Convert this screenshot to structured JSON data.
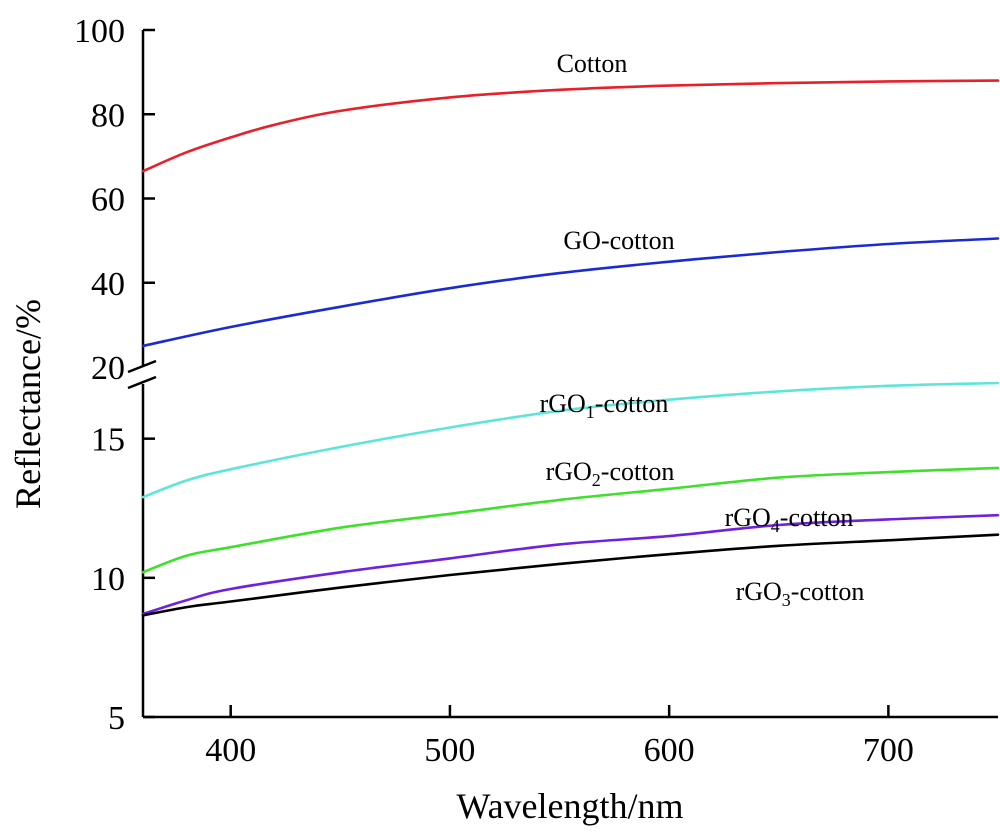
{
  "chart_data": {
    "type": "line",
    "xlabel": "Wavelength/nm",
    "ylabel": "Reflectance/%",
    "xlim": [
      360,
      750
    ],
    "x_ticks": [
      "400",
      "500",
      "600",
      "700"
    ],
    "y_axis_break": true,
    "y_upper": {
      "ylim": [
        20,
        100
      ],
      "ticks": [
        "20",
        "40",
        "60",
        "80",
        "100"
      ]
    },
    "y_lower": {
      "ylim": [
        5,
        17
      ],
      "ticks": [
        "5",
        "10",
        "15"
      ]
    },
    "grid": false,
    "series": [
      {
        "name": "Cotton",
        "label": {
          "main": "Cotton",
          "sub": "",
          "rest": ""
        },
        "color": "#e8202a",
        "panel": "upper",
        "x": [
          360,
          380,
          400,
          420,
          450,
          500,
          550,
          600,
          650,
          700,
          750
        ],
        "y": [
          66.5,
          71,
          74.5,
          77.5,
          80.8,
          84,
          85.8,
          86.8,
          87.4,
          87.8,
          88
        ]
      },
      {
        "name": "GO-cotton",
        "label": {
          "main": "GO-cotton",
          "sub": "",
          "rest": ""
        },
        "color": "#1a2bd4",
        "panel": "upper",
        "x": [
          360,
          400,
          450,
          500,
          550,
          600,
          650,
          700,
          750
        ],
        "y": [
          25,
          29.5,
          34.3,
          38.7,
          42.3,
          45,
          47.3,
          49.2,
          50.5
        ]
      },
      {
        "name": "rGO1-cotton",
        "label": {
          "main": "rGO",
          "sub": "1",
          "rest": "-cotton"
        },
        "color": "#5de6d8",
        "panel": "lower",
        "x": [
          360,
          380,
          400,
          450,
          500,
          550,
          600,
          650,
          700,
          750
        ],
        "y": [
          12.9,
          13.5,
          13.9,
          14.7,
          15.4,
          16.0,
          16.4,
          16.7,
          16.9,
          17.0
        ]
      },
      {
        "name": "rGO2-cotton",
        "label": {
          "main": "rGO",
          "sub": "2",
          "rest": "-cotton"
        },
        "color": "#3ee02a",
        "panel": "lower",
        "x": [
          360,
          380,
          400,
          450,
          500,
          550,
          600,
          650,
          700,
          750
        ],
        "y": [
          10.2,
          10.8,
          11.1,
          11.8,
          12.3,
          12.8,
          13.2,
          13.6,
          13.8,
          13.95
        ]
      },
      {
        "name": "rGO4-cotton",
        "label": {
          "main": "rGO",
          "sub": "4",
          "rest": "-cotton"
        },
        "color": "#7020e0",
        "panel": "lower",
        "x": [
          360,
          380,
          400,
          450,
          500,
          550,
          600,
          650,
          700,
          750
        ],
        "y": [
          8.7,
          9.2,
          9.6,
          10.2,
          10.7,
          11.2,
          11.5,
          11.9,
          12.1,
          12.25
        ]
      },
      {
        "name": "rGO3-cotton",
        "label": {
          "main": "rGO",
          "sub": "3",
          "rest": "-cotton"
        },
        "color": "#000000",
        "panel": "lower",
        "x": [
          360,
          380,
          400,
          450,
          500,
          550,
          600,
          650,
          700,
          750
        ],
        "y": [
          8.65,
          8.95,
          9.15,
          9.65,
          10.1,
          10.5,
          10.85,
          11.15,
          11.35,
          11.55
        ]
      }
    ]
  }
}
